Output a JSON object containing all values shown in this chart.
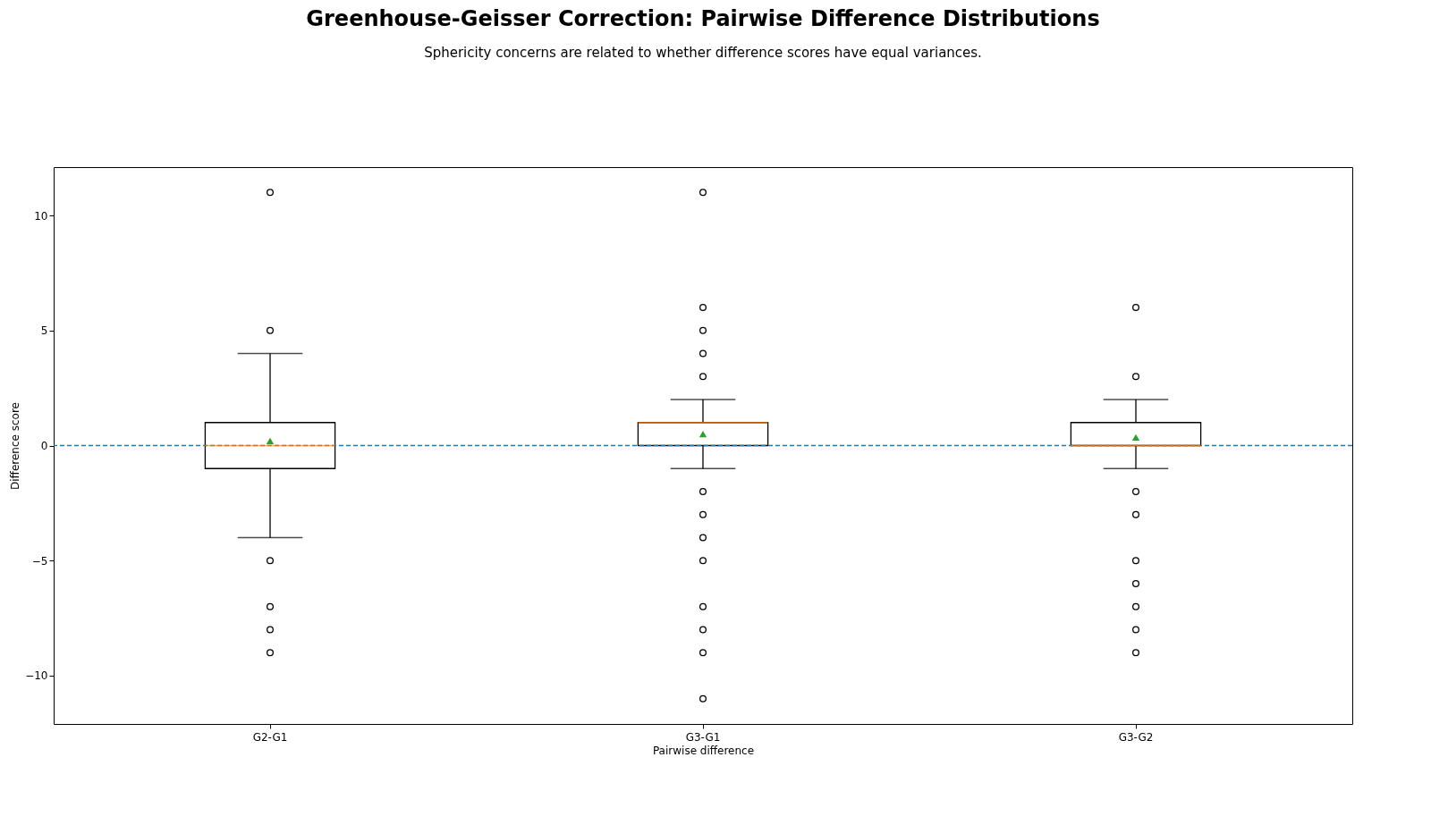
{
  "chart_data": {
    "type": "box",
    "title": "Greenhouse-Geisser Correction: Pairwise Difference Distributions",
    "subtitle": "Sphericity concerns are related to whether difference scores have equal variances.",
    "xlabel": "Pairwise difference",
    "ylabel": "Difference score",
    "categories": [
      "G2-G1",
      "G3-G1",
      "G3-G2"
    ],
    "boxes": [
      {
        "low": -4,
        "q1": -1,
        "median": 0,
        "q3": 1,
        "high": 4,
        "mean": 0.2,
        "outliers": [
          11,
          5,
          -5,
          -7,
          -8,
          -9
        ]
      },
      {
        "low": -1,
        "q1": 0,
        "median": 1,
        "q3": 1,
        "high": 2,
        "mean": 0.5,
        "outliers": [
          11,
          6,
          5,
          4,
          3,
          -2,
          -3,
          -4,
          -5,
          -7,
          -8,
          -9,
          -11
        ]
      },
      {
        "low": -1,
        "q1": 0,
        "median": 0,
        "q3": 1,
        "high": 2,
        "mean": 0.35,
        "outliers": [
          6,
          3,
          -2,
          -3,
          -5,
          -6,
          -7,
          -8,
          -9
        ]
      }
    ],
    "ylim": [
      -12.1,
      12.1
    ],
    "yticks": [
      -10,
      -5,
      0,
      5,
      10
    ],
    "ref_lines": [
      {
        "axis": "y",
        "value": 0,
        "color": "#1f77b4",
        "line_style": "dashed"
      }
    ],
    "grid": false,
    "marker": "circle"
  }
}
